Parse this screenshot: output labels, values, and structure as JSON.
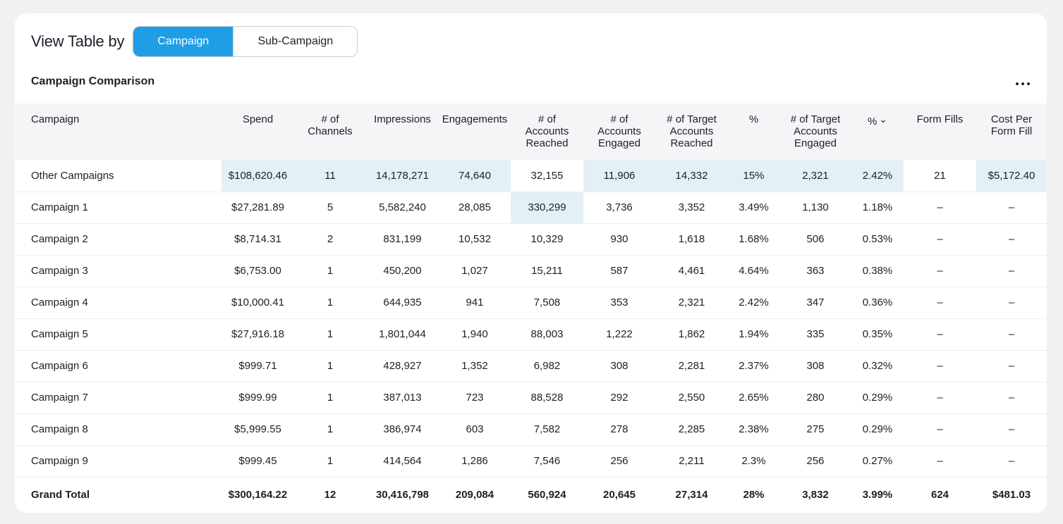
{
  "view_by": {
    "label": "View Table by",
    "options": [
      "Campaign",
      "Sub-Campaign"
    ],
    "selected": "Campaign"
  },
  "table_title": "Campaign Comparison",
  "menu_icon": "more-horizontal-icon",
  "columns": [
    {
      "label": "Campaign"
    },
    {
      "label": "Spend"
    },
    {
      "label": "# of\nChannels"
    },
    {
      "label": "Impressions"
    },
    {
      "label": "Engagements"
    },
    {
      "label": "# of\nAccounts\nReached"
    },
    {
      "label": "# of\nAccounts\nEngaged"
    },
    {
      "label": "# of Target\nAccounts\nReached"
    },
    {
      "label": "%"
    },
    {
      "label": "# of Target\nAccounts\nEngaged"
    },
    {
      "label": "%",
      "sorted": "desc"
    },
    {
      "label": "Form Fills"
    },
    {
      "label": "Cost Per\nForm Fill"
    }
  ],
  "rows": [
    {
      "cells": [
        "Other Campaigns",
        "$108,620.46",
        "11",
        "14,178,271",
        "74,640",
        "32,155",
        "11,906",
        "14,332",
        "15%",
        "2,321",
        "2.42%",
        "21",
        "$5,172.40"
      ],
      "highlight": [
        1,
        2,
        3,
        4,
        6,
        7,
        8,
        9,
        10,
        12
      ]
    },
    {
      "cells": [
        "Campaign 1",
        "$27,281.89",
        "5",
        "5,582,240",
        "28,085",
        "330,299",
        "3,736",
        "3,352",
        "3.49%",
        "1,130",
        "1.18%",
        "–",
        "–"
      ],
      "highlight": [
        5
      ]
    },
    {
      "cells": [
        "Campaign 2",
        "$8,714.31",
        "2",
        "831,199",
        "10,532",
        "10,329",
        "930",
        "1,618",
        "1.68%",
        "506",
        "0.53%",
        "–",
        "–"
      ],
      "highlight": []
    },
    {
      "cells": [
        "Campaign 3",
        "$6,753.00",
        "1",
        "450,200",
        "1,027",
        "15,211",
        "587",
        "4,461",
        "4.64%",
        "363",
        "0.38%",
        "–",
        "–"
      ],
      "highlight": []
    },
    {
      "cells": [
        "Campaign 4",
        "$10,000.41",
        "1",
        "644,935",
        "941",
        "7,508",
        "353",
        "2,321",
        "2.42%",
        "347",
        "0.36%",
        "–",
        "–"
      ],
      "highlight": []
    },
    {
      "cells": [
        "Campaign 5",
        "$27,916.18",
        "1",
        "1,801,044",
        "1,940",
        "88,003",
        "1,222",
        "1,862",
        "1.94%",
        "335",
        "0.35%",
        "–",
        "–"
      ],
      "highlight": []
    },
    {
      "cells": [
        "Campaign 6",
        "$999.71",
        "1",
        "428,927",
        "1,352",
        "6,982",
        "308",
        "2,281",
        "2.37%",
        "308",
        "0.32%",
        "–",
        "–"
      ],
      "highlight": []
    },
    {
      "cells": [
        "Campaign 7",
        "$999.99",
        "1",
        "387,013",
        "723",
        "88,528",
        "292",
        "2,550",
        "2.65%",
        "280",
        "0.29%",
        "–",
        "–"
      ],
      "highlight": []
    },
    {
      "cells": [
        "Campaign 8",
        "$5,999.55",
        "1",
        "386,974",
        "603",
        "7,582",
        "278",
        "2,285",
        "2.38%",
        "275",
        "0.29%",
        "–",
        "–"
      ],
      "highlight": []
    },
    {
      "cells": [
        "Campaign 9",
        "$999.45",
        "1",
        "414,564",
        "1,286",
        "7,546",
        "256",
        "2,211",
        "2.3%",
        "256",
        "0.27%",
        "–",
        "–"
      ],
      "highlight": []
    }
  ],
  "total": [
    "Grand Total",
    "$300,164.22",
    "12",
    "30,416,798",
    "209,084",
    "560,924",
    "20,645",
    "27,314",
    "28%",
    "3,832",
    "3.99%",
    "624",
    "$481.03"
  ]
}
